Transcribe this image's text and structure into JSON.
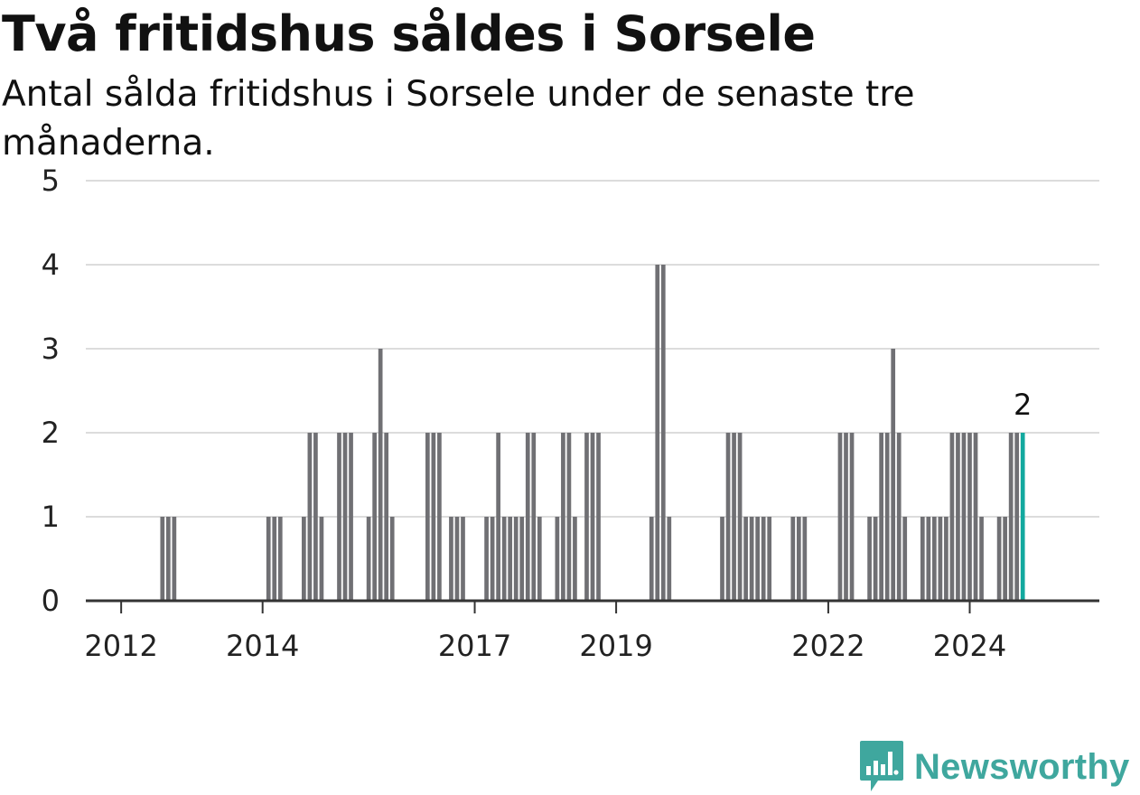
{
  "title": "Två fritidshus såldes i Sorsele",
  "subtitle": "Antal sålda fritidshus i Sorsele under de senaste tre månaderna.",
  "brand": {
    "name": "Newsworthy",
    "icon": "newsworthy-logo-icon",
    "color": "#3fa79e"
  },
  "chart_data": {
    "type": "bar",
    "ylim": [
      0,
      5
    ],
    "yticks": [
      0,
      1,
      2,
      3,
      4,
      5
    ],
    "xlim": [
      "2011-07",
      "2025-11"
    ],
    "xticks": [
      {
        "date": "2012-01",
        "label": "2012"
      },
      {
        "date": "2014-01",
        "label": "2014"
      },
      {
        "date": "2017-01",
        "label": "2017"
      },
      {
        "date": "2019-01",
        "label": "2019"
      },
      {
        "date": "2022-01",
        "label": "2022"
      },
      {
        "date": "2024-01",
        "label": "2024"
      }
    ],
    "grid": true,
    "bar_color": "#707074",
    "highlight_color": "#13a99f",
    "highlight_label": "2",
    "series": [
      {
        "points": [
          [
            "2012-08",
            1
          ],
          [
            "2012-09",
            1
          ],
          [
            "2012-10",
            1
          ],
          [
            "2014-02",
            1
          ],
          [
            "2014-03",
            1
          ],
          [
            "2014-04",
            1
          ],
          [
            "2014-08",
            1
          ],
          [
            "2014-09",
            2
          ],
          [
            "2014-10",
            2
          ],
          [
            "2014-11",
            1
          ],
          [
            "2015-02",
            2
          ],
          [
            "2015-03",
            2
          ],
          [
            "2015-04",
            2
          ],
          [
            "2015-07",
            1
          ],
          [
            "2015-08",
            2
          ],
          [
            "2015-09",
            3
          ],
          [
            "2015-10",
            2
          ],
          [
            "2015-11",
            1
          ],
          [
            "2016-05",
            2
          ],
          [
            "2016-06",
            2
          ],
          [
            "2016-07",
            2
          ],
          [
            "2016-09",
            1
          ],
          [
            "2016-10",
            1
          ],
          [
            "2016-11",
            1
          ],
          [
            "2017-03",
            1
          ],
          [
            "2017-04",
            1
          ],
          [
            "2017-05",
            2
          ],
          [
            "2017-06",
            1
          ],
          [
            "2017-07",
            1
          ],
          [
            "2017-08",
            1
          ],
          [
            "2017-09",
            1
          ],
          [
            "2017-10",
            2
          ],
          [
            "2017-11",
            2
          ],
          [
            "2017-12",
            1
          ],
          [
            "2018-03",
            1
          ],
          [
            "2018-04",
            2
          ],
          [
            "2018-05",
            2
          ],
          [
            "2018-06",
            1
          ],
          [
            "2018-08",
            2
          ],
          [
            "2018-09",
            2
          ],
          [
            "2018-10",
            2
          ],
          [
            "2019-07",
            1
          ],
          [
            "2019-08",
            4
          ],
          [
            "2019-09",
            4
          ],
          [
            "2019-10",
            1
          ],
          [
            "2020-07",
            1
          ],
          [
            "2020-08",
            2
          ],
          [
            "2020-09",
            2
          ],
          [
            "2020-10",
            2
          ],
          [
            "2020-11",
            1
          ],
          [
            "2020-12",
            1
          ],
          [
            "2021-01",
            1
          ],
          [
            "2021-02",
            1
          ],
          [
            "2021-03",
            1
          ],
          [
            "2021-07",
            1
          ],
          [
            "2021-08",
            1
          ],
          [
            "2021-09",
            1
          ],
          [
            "2022-03",
            2
          ],
          [
            "2022-04",
            2
          ],
          [
            "2022-05",
            2
          ],
          [
            "2022-08",
            1
          ],
          [
            "2022-09",
            1
          ],
          [
            "2022-10",
            2
          ],
          [
            "2022-11",
            2
          ],
          [
            "2022-12",
            3
          ],
          [
            "2023-01",
            2
          ],
          [
            "2023-02",
            1
          ],
          [
            "2023-05",
            1
          ],
          [
            "2023-06",
            1
          ],
          [
            "2023-07",
            1
          ],
          [
            "2023-08",
            1
          ],
          [
            "2023-09",
            1
          ],
          [
            "2023-10",
            2
          ],
          [
            "2023-11",
            2
          ],
          [
            "2023-12",
            2
          ],
          [
            "2024-01",
            2
          ],
          [
            "2024-02",
            2
          ],
          [
            "2024-03",
            1
          ],
          [
            "2024-06",
            1
          ],
          [
            "2024-07",
            1
          ],
          [
            "2024-08",
            2
          ],
          [
            "2024-09",
            2
          ],
          [
            "2024-10",
            2
          ]
        ]
      }
    ]
  }
}
